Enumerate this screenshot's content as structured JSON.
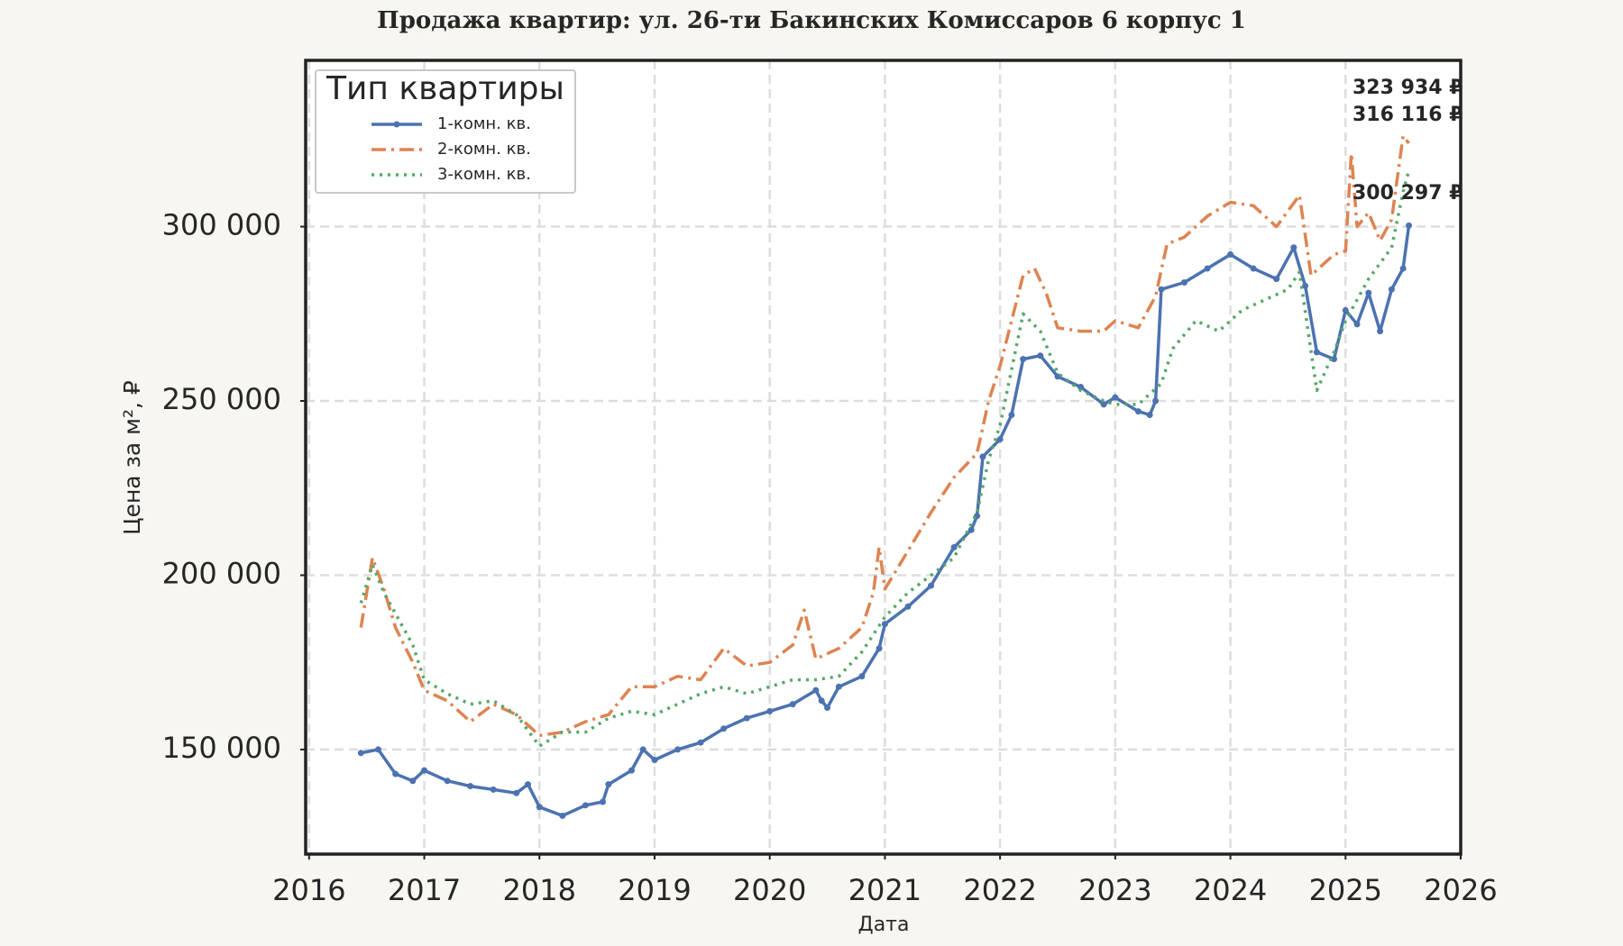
{
  "chart_data": {
    "type": "line",
    "title": "Продажа квартир: ул. 26-ти Бакинских Комиссаров 6 корпус 1",
    "x_label": "Дата",
    "y_label": "Цена за м², ₽",
    "legend_title": "Тип квартиры",
    "legend_position": "upper left",
    "grid": true,
    "xlim": [
      2015.97,
      2026
    ],
    "xticks": [
      2016,
      2017,
      2018,
      2019,
      2020,
      2021,
      2022,
      2023,
      2024,
      2025,
      2026
    ],
    "ylim": [
      120000,
      347700
    ],
    "yticks": [
      {
        "value": 150000,
        "label": "150 000"
      },
      {
        "value": 200000,
        "label": "200 000"
      },
      {
        "value": 250000,
        "label": "250 000"
      },
      {
        "value": 300000,
        "label": "300 000"
      }
    ],
    "series": [
      {
        "name": "1-комн. кв.",
        "color": "#4c72b0",
        "linestyle": "solid-marker",
        "x": [
          2016.45,
          2016.6,
          2016.75,
          2016.9,
          2017.0,
          2017.2,
          2017.4,
          2017.6,
          2017.8,
          2017.9,
          2018.0,
          2018.2,
          2018.4,
          2018.55,
          2018.6,
          2018.8,
          2018.9,
          2019.0,
          2019.2,
          2019.4,
          2019.6,
          2019.8,
          2020.0,
          2020.2,
          2020.4,
          2020.45,
          2020.5,
          2020.6,
          2020.8,
          2020.95,
          2021.0,
          2021.2,
          2021.4,
          2021.6,
          2021.75,
          2021.8,
          2021.85,
          2022.0,
          2022.1,
          2022.2,
          2022.35,
          2022.5,
          2022.7,
          2022.9,
          2023.0,
          2023.2,
          2023.3,
          2023.35,
          2023.4,
          2023.6,
          2023.8,
          2024.0,
          2024.2,
          2024.4,
          2024.55,
          2024.65,
          2024.75,
          2024.9,
          2025.0,
          2025.1,
          2025.2,
          2025.3,
          2025.4,
          2025.5,
          2025.55
        ],
        "values": [
          149000,
          150000,
          143000,
          141000,
          144000,
          141000,
          139500,
          138500,
          137500,
          140000,
          133500,
          131000,
          134000,
          135000,
          140000,
          144000,
          150000,
          147000,
          150000,
          152000,
          156000,
          159000,
          161000,
          163000,
          167000,
          164000,
          162000,
          168000,
          171000,
          179000,
          186000,
          191000,
          197000,
          208000,
          213000,
          217000,
          234000,
          239000,
          246000,
          262000,
          263000,
          257000,
          254000,
          249000,
          251000,
          247000,
          246000,
          250000,
          282000,
          284000,
          288000,
          292000,
          288000,
          285000,
          294000,
          283000,
          264000,
          262000,
          276000,
          272000,
          281000,
          270000,
          282000,
          288000,
          300297
        ]
      },
      {
        "name": "2-комн. кв.",
        "color": "#dd8452",
        "linestyle": "dashdot",
        "x": [
          2016.45,
          2016.55,
          2016.65,
          2016.75,
          2016.9,
          2017.0,
          2017.2,
          2017.4,
          2017.6,
          2017.8,
          2018.0,
          2018.2,
          2018.4,
          2018.6,
          2018.8,
          2019.0,
          2019.2,
          2019.4,
          2019.6,
          2019.8,
          2020.0,
          2020.2,
          2020.3,
          2020.4,
          2020.6,
          2020.8,
          2020.9,
          2020.95,
          2021.0,
          2021.2,
          2021.4,
          2021.6,
          2021.8,
          2021.9,
          2022.0,
          2022.2,
          2022.3,
          2022.4,
          2022.5,
          2022.7,
          2022.9,
          2023.0,
          2023.2,
          2023.35,
          2023.45,
          2023.6,
          2023.8,
          2024.0,
          2024.2,
          2024.4,
          2024.6,
          2024.7,
          2024.9,
          2025.0,
          2025.05,
          2025.1,
          2025.2,
          2025.3,
          2025.4,
          2025.5,
          2025.55
        ],
        "values": [
          185000,
          205000,
          196000,
          185000,
          175000,
          167000,
          164000,
          158000,
          163000,
          160000,
          154000,
          155000,
          158000,
          160000,
          168000,
          168000,
          171000,
          170000,
          179000,
          174000,
          175000,
          180000,
          190000,
          176000,
          179000,
          185000,
          195000,
          208000,
          196000,
          207000,
          218000,
          228000,
          235000,
          250000,
          260000,
          286000,
          288000,
          281000,
          271000,
          270000,
          270000,
          273000,
          271000,
          280000,
          295000,
          297000,
          303000,
          307000,
          306000,
          300000,
          309000,
          286000,
          292000,
          293000,
          321000,
          300000,
          304000,
          296000,
          302000,
          326000,
          323934
        ]
      },
      {
        "name": "3-комн. кв.",
        "color": "#55a868",
        "linestyle": "dotted",
        "x": [
          2016.45,
          2016.55,
          2016.65,
          2016.75,
          2016.9,
          2017.0,
          2017.2,
          2017.4,
          2017.6,
          2017.8,
          2018.0,
          2018.2,
          2018.4,
          2018.6,
          2018.8,
          2019.0,
          2019.2,
          2019.4,
          2019.6,
          2019.8,
          2020.0,
          2020.2,
          2020.4,
          2020.6,
          2020.8,
          2021.0,
          2021.2,
          2021.4,
          2021.6,
          2021.8,
          2021.9,
          2022.0,
          2022.2,
          2022.35,
          2022.5,
          2022.7,
          2022.9,
          2023.0,
          2023.2,
          2023.4,
          2023.5,
          2023.7,
          2023.9,
          2024.1,
          2024.3,
          2024.5,
          2024.6,
          2024.75,
          2024.9,
          2025.0,
          2025.2,
          2025.4,
          2025.5,
          2025.55
        ],
        "values": [
          192000,
          203000,
          195000,
          189000,
          180000,
          170000,
          166000,
          163000,
          164000,
          160000,
          151000,
          155000,
          155000,
          159000,
          161000,
          160000,
          163000,
          166000,
          168000,
          166000,
          168000,
          170000,
          170000,
          171000,
          178000,
          188000,
          195000,
          200000,
          205000,
          218000,
          233000,
          243000,
          275000,
          270000,
          258000,
          253000,
          250000,
          249000,
          249000,
          255000,
          265000,
          273000,
          270000,
          276000,
          279000,
          282000,
          287000,
          253000,
          264000,
          273000,
          285000,
          294000,
          310000,
          316116
        ]
      }
    ],
    "annotations": [
      {
        "text": "323 934 ₽",
        "color": "#dd8452"
      },
      {
        "text": "316 116 ₽",
        "color": "#55a868"
      },
      {
        "text": "300 297 ₽",
        "color": "#4c72b0"
      }
    ]
  }
}
